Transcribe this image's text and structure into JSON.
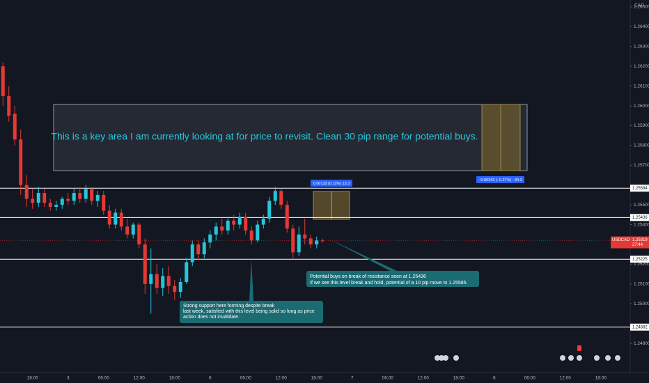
{
  "chart_data": {
    "type": "candlestick",
    "symbol": "USDCAD",
    "currency": "CAD",
    "countdown": "27:44",
    "last_price": {
      "value": 1.25319,
      "label": "1.25319"
    },
    "up_color": "#26c6da",
    "down_color": "#e53935",
    "categories": [
      null,
      null,
      null,
      null,
      null,
      "18:00",
      null,
      null,
      null,
      null,
      null,
      "3",
      null,
      null,
      null,
      null,
      null,
      "06:00",
      null,
      null,
      null,
      null,
      null,
      "12:00",
      null,
      null,
      null,
      null,
      null,
      "18:00",
      null,
      null,
      null,
      null,
      null,
      "6",
      null,
      null,
      null,
      null,
      null,
      "06:00",
      null,
      null,
      null,
      null,
      null,
      "12:00",
      null,
      null,
      null,
      null,
      null,
      "18:00",
      null,
      null,
      null,
      null,
      null,
      "7",
      null,
      null,
      null,
      null,
      null,
      "06:00",
      null,
      null,
      null,
      null,
      null,
      "12:00",
      null,
      null,
      null,
      null,
      null,
      "18:00",
      null,
      null,
      null,
      null,
      null,
      "8",
      null,
      null,
      null,
      null,
      null,
      "06:00",
      null,
      null,
      null,
      null,
      null,
      "12:00",
      null,
      null,
      null,
      null,
      null,
      "18:00",
      null,
      null,
      null,
      null
    ],
    "open": [
      1.262,
      1.2605,
      1.2596,
      1.2583,
      1.256,
      1.2553,
      1.2551,
      1.2556,
      1.2551,
      1.2549,
      1.255,
      1.2553,
      1.2552,
      1.2556,
      1.2553,
      1.2558,
      1.2552,
      1.2555,
      1.2547,
      1.254,
      1.2546,
      1.2539,
      1.2535,
      1.254,
      1.253,
      1.251,
      1.2515,
      1.2508,
      1.2514,
      1.2509,
      1.2506,
      1.2511,
      1.2521,
      1.253,
      1.2525,
      1.2531,
      1.2535,
      1.2539,
      1.2537,
      1.2542,
      1.254,
      1.2544,
      1.2537,
      1.2532,
      1.254,
      1.2543,
      1.2552,
      1.2557,
      1.255,
      1.2538,
      1.2526,
      1.2535,
      1.2533,
      1.253,
      1.2532,
      null,
      null,
      null,
      null,
      null,
      null,
      null,
      null,
      null,
      null,
      null,
      null,
      null,
      null,
      null,
      null,
      null,
      null,
      null,
      null,
      null,
      null,
      null,
      null,
      null,
      null,
      null,
      null,
      null,
      null,
      null,
      null,
      null,
      null,
      null,
      null,
      null,
      null,
      null,
      null,
      null,
      null,
      null,
      null,
      null,
      null,
      null,
      null,
      null,
      null,
      null
    ],
    "high": [
      1.2622,
      1.261,
      1.26,
      1.2588,
      1.2565,
      1.2558,
      1.2559,
      1.2558,
      1.2553,
      1.2552,
      1.2554,
      1.2556,
      1.2558,
      1.2559,
      1.256,
      1.2559,
      1.2557,
      1.2557,
      1.255,
      1.2548,
      1.2548,
      1.2543,
      1.2541,
      1.2541,
      1.2533,
      1.2528,
      1.252,
      1.2518,
      1.2519,
      1.2512,
      1.2513,
      1.2523,
      1.2532,
      1.2532,
      1.2533,
      1.2537,
      1.2541,
      1.2543,
      1.2544,
      1.2545,
      1.2546,
      1.2546,
      1.2539,
      1.2542,
      1.2545,
      1.2554,
      1.2559,
      1.2558,
      1.2552,
      1.254,
      1.2539,
      1.2543,
      1.2535,
      1.2534,
      1.2533,
      null,
      null,
      null,
      null,
      null,
      null,
      null,
      null,
      null,
      null,
      null,
      null,
      null,
      null,
      null,
      null,
      null,
      null,
      null,
      null,
      null,
      null,
      null,
      null,
      null,
      null,
      null,
      null,
      null,
      null,
      null,
      null,
      null,
      null,
      null,
      null,
      null,
      null,
      null,
      null,
      null,
      null,
      null,
      null,
      null,
      null,
      null,
      null,
      null,
      null,
      null
    ],
    "low": [
      1.26,
      1.2592,
      1.258,
      1.2555,
      1.2549,
      1.2548,
      1.2549,
      1.2549,
      1.2547,
      1.2547,
      1.2548,
      1.255,
      1.255,
      1.2551,
      1.2551,
      1.255,
      1.2549,
      1.2545,
      1.2538,
      1.2538,
      1.2537,
      1.2533,
      1.2533,
      1.2528,
      1.2505,
      1.2495,
      1.2505,
      1.2504,
      1.2505,
      1.2502,
      1.2503,
      1.251,
      1.2519,
      1.2522,
      1.2523,
      1.2528,
      1.2532,
      1.2535,
      1.2535,
      1.2537,
      1.2538,
      1.2535,
      1.253,
      1.2531,
      1.2538,
      1.2541,
      1.255,
      1.2548,
      1.2536,
      1.2523,
      1.2524,
      1.253,
      1.2528,
      1.2528,
      1.2531,
      null,
      null,
      null,
      null,
      null,
      null,
      null,
      null,
      null,
      null,
      null,
      null,
      null,
      null,
      null,
      null,
      null,
      null,
      null,
      null,
      null,
      null,
      null,
      null,
      null,
      null,
      null,
      null,
      null,
      null,
      null,
      null,
      null,
      null,
      null,
      null,
      null,
      null,
      null,
      null,
      null,
      null,
      null,
      null,
      null,
      null,
      null,
      null,
      null,
      null,
      null
    ],
    "close": [
      1.2605,
      1.2595,
      1.2583,
      1.256,
      1.2553,
      1.2551,
      1.2556,
      1.2551,
      1.2549,
      1.255,
      1.2553,
      1.2552,
      1.2556,
      1.2553,
      1.2558,
      1.2552,
      1.2555,
      1.2547,
      1.254,
      1.2546,
      1.2539,
      1.2535,
      1.254,
      1.253,
      1.251,
      1.2515,
      1.2508,
      1.2514,
      1.2509,
      1.2506,
      1.2511,
      1.2521,
      1.253,
      1.2525,
      1.2531,
      1.2535,
      1.2539,
      1.2537,
      1.2542,
      1.254,
      1.2544,
      1.2537,
      1.2532,
      1.254,
      1.2543,
      1.2552,
      1.2557,
      1.255,
      1.2538,
      1.2526,
      1.2535,
      1.2533,
      1.253,
      1.2532,
      1.25319,
      null,
      null,
      null,
      null,
      null,
      null,
      null,
      null,
      null,
      null,
      null,
      null,
      null,
      null,
      null,
      null,
      null,
      null,
      null,
      null,
      null,
      null,
      null,
      null,
      null,
      null,
      null,
      null,
      null,
      null,
      null,
      null,
      null,
      null,
      null,
      null,
      null,
      null,
      null,
      null,
      null,
      null,
      null,
      null,
      null,
      null,
      null,
      null,
      null,
      null,
      null
    ],
    "ylim": [
      1.2467,
      1.26535
    ],
    "yticks": [
      {
        "value": 1.265,
        "label": "1.26500"
      },
      {
        "value": 1.264,
        "label": "1.26400"
      },
      {
        "value": 1.263,
        "label": "1.26300"
      },
      {
        "value": 1.262,
        "label": "1.26200"
      },
      {
        "value": 1.261,
        "label": "1.26100"
      },
      {
        "value": 1.26,
        "label": "1.26000"
      },
      {
        "value": 1.259,
        "label": "1.25900"
      },
      {
        "value": 1.258,
        "label": "1.25800"
      },
      {
        "value": 1.257,
        "label": "1.25700"
      },
      {
        "value": 1.255,
        "label": "1.25500"
      },
      {
        "value": 1.254,
        "label": "1.25400"
      },
      {
        "value": 1.252,
        "label": "1.25200"
      },
      {
        "value": 1.251,
        "label": "1.25100"
      },
      {
        "value": 1.25,
        "label": "1.25000"
      },
      {
        "value": 1.248,
        "label": "1.24800"
      }
    ],
    "hlines": [
      {
        "value": 1.25584,
        "label": "1.25584"
      },
      {
        "value": 1.25436,
        "label": "1.25436"
      },
      {
        "value": 1.25225,
        "label": "1.25225"
      },
      {
        "value": 1.24882,
        "label": "1.24882"
      }
    ],
    "annotations": {
      "key_area": "This is a key area I am currently looking at for price to revisit. Clean 30 pip range for potential buys.",
      "measure_up": "0.00133 (0.11%) 13.3",
      "measure_down": "−0.00343 (−0.27%) −34.3",
      "support_note": [
        "Strong support here forming despite break",
        "last week, satisfied with this level being solid so long as price",
        "action does not invalidate."
      ],
      "resistance_note": [
        "Potential buys on break of resistance seen at 1.25436",
        "If we see this level break and hold, potential of a 10 pip move to 1.25585."
      ]
    }
  }
}
